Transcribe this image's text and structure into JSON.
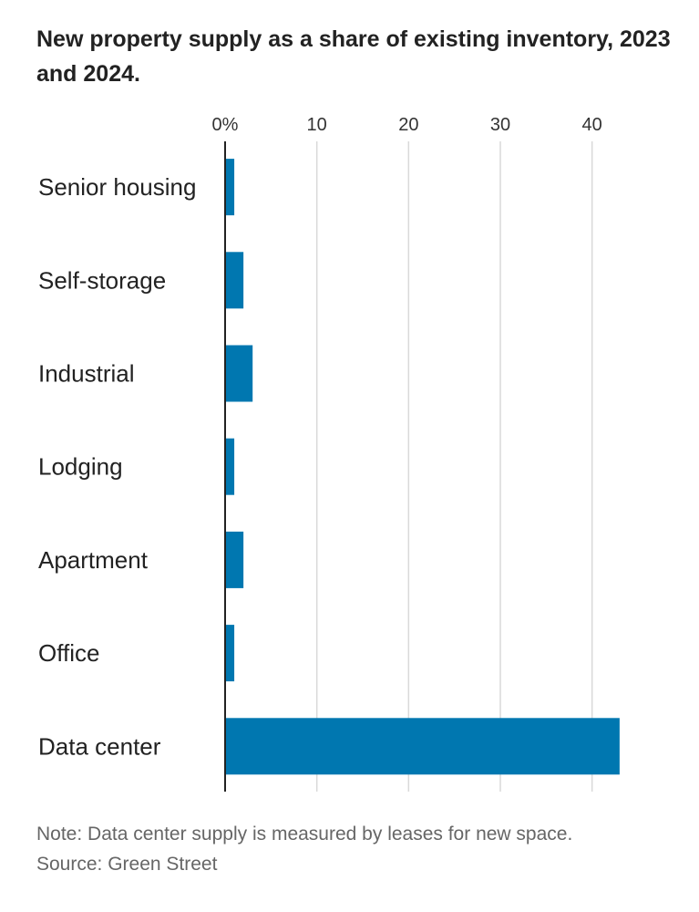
{
  "chart_data": {
    "type": "bar",
    "orientation": "horizontal",
    "title": "New property supply as a share of existing inventory, 2023 and 2024.",
    "categories": [
      "Senior housing",
      "Self-storage",
      "Industrial",
      "Lodging",
      "Apartment",
      "Office",
      "Data center"
    ],
    "values": [
      1,
      2,
      3,
      1,
      2,
      1,
      43
    ],
    "xlim": [
      0,
      45
    ],
    "ticks": [
      0,
      10,
      20,
      30,
      40
    ],
    "tick_labels": [
      "0%",
      "10",
      "20",
      "30",
      "40"
    ],
    "grid": true,
    "bar_color": "#0077b0",
    "grid_color": "#d9d9d9",
    "axis_color": "#222222"
  },
  "note": "Note: Data center supply is measured by leases for new space.",
  "source": "Source: Green Street"
}
